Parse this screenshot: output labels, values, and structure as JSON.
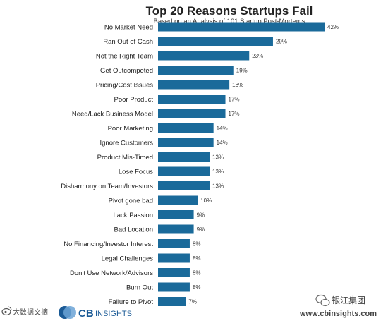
{
  "chart_data": {
    "type": "bar",
    "orientation": "horizontal",
    "title": "Top 20 Reasons Startups Fail",
    "subtitle": "Based on an Analysis of 101 Startup Post-Mortems",
    "xlabel": "",
    "ylabel": "",
    "xlim": [
      0,
      42
    ],
    "grid": false,
    "value_suffix": "%",
    "categories": [
      "No Market Need",
      "Ran Out of Cash",
      "Not the Right Team",
      "Get Outcompeted",
      "Pricing/Cost Issues",
      "Poor Product",
      "Need/Lack Business Model",
      "Poor Marketing",
      "Ignore Customers",
      "Product Mis-Timed",
      "Lose Focus",
      "Disharmony on Team/Investors",
      "Pivot gone bad",
      "Lack Passion",
      "Bad Location",
      "No Financing/Investor Interest",
      "Legal Challenges",
      "Don't Use Network/Advisors",
      "Burn Out",
      "Failure to Pivot"
    ],
    "values": [
      42,
      29,
      23,
      19,
      18,
      17,
      17,
      14,
      14,
      13,
      13,
      13,
      10,
      9,
      9,
      8,
      8,
      8,
      8,
      7
    ],
    "bar_color": "#1a6a9a"
  },
  "footer": {
    "left_watermark": "大数据文摘",
    "brand": "CBINSIGHTS",
    "brand_cb": "CB",
    "brand_rest": "INSIGHTS",
    "brand_color": "#1a5a96",
    "right_watermark": "银江集团",
    "url": "www.cbinsights.com"
  }
}
